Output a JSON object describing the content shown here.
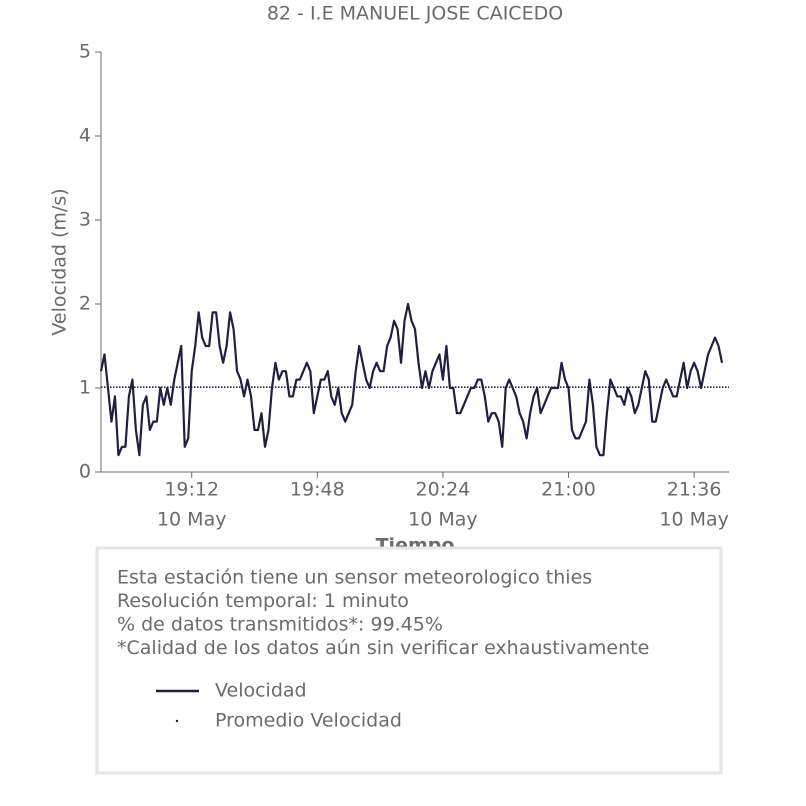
{
  "chart_data": {
    "type": "line",
    "title": "82 - I.E MANUEL JOSE CAICEDO",
    "xlabel": "Tiempo",
    "ylabel": "Velocidad (m/s)",
    "x": [
      "18:46",
      "18:47",
      "18:48",
      "18:49",
      "18:50",
      "18:51",
      "18:52",
      "18:53",
      "18:54",
      "18:55",
      "18:56",
      "18:57",
      "18:58",
      "18:59",
      "19:00",
      "19:01",
      "19:02",
      "19:03",
      "19:04",
      "19:05",
      "19:06",
      "19:07",
      "19:08",
      "19:09",
      "19:10",
      "19:11",
      "19:12",
      "19:13",
      "19:14",
      "19:15",
      "19:16",
      "19:17",
      "19:18",
      "19:19",
      "19:20",
      "19:21",
      "19:22",
      "19:23",
      "19:24",
      "19:25",
      "19:26",
      "19:27",
      "19:28",
      "19:29",
      "19:30",
      "19:31",
      "19:32",
      "19:33",
      "19:34",
      "19:35",
      "19:36",
      "19:37",
      "19:38",
      "19:39",
      "19:40",
      "19:41",
      "19:42",
      "19:43",
      "19:44",
      "19:45",
      "19:46",
      "19:47",
      "19:48",
      "19:49",
      "19:50",
      "19:51",
      "19:52",
      "19:53",
      "19:54",
      "19:55",
      "19:56",
      "19:57",
      "19:58",
      "19:59",
      "20:00",
      "20:01",
      "20:02",
      "20:03",
      "20:04",
      "20:05",
      "20:06",
      "20:07",
      "20:08",
      "20:09",
      "20:10",
      "20:11",
      "20:12",
      "20:13",
      "20:14",
      "20:15",
      "20:16",
      "20:17",
      "20:18",
      "20:19",
      "20:20",
      "20:21",
      "20:22",
      "20:23",
      "20:24",
      "20:25",
      "20:26",
      "20:27",
      "20:28",
      "20:29",
      "20:30",
      "20:31",
      "20:32",
      "20:33",
      "20:34",
      "20:35",
      "20:36",
      "20:37",
      "20:38",
      "20:39",
      "20:40",
      "20:41",
      "20:42",
      "20:43",
      "20:44",
      "20:45",
      "20:46",
      "20:47",
      "20:48",
      "20:49",
      "20:50",
      "20:51",
      "20:52",
      "20:53",
      "20:54",
      "20:55",
      "20:56",
      "20:57",
      "20:58",
      "20:59",
      "21:00",
      "21:01",
      "21:02",
      "21:03",
      "21:04",
      "21:05",
      "21:06",
      "21:07",
      "21:08",
      "21:09",
      "21:10",
      "21:11",
      "21:12",
      "21:13",
      "21:14",
      "21:15",
      "21:16",
      "21:17",
      "21:18",
      "21:19",
      "21:20",
      "21:21",
      "21:22",
      "21:23",
      "21:24",
      "21:25",
      "21:26",
      "21:27",
      "21:28",
      "21:29",
      "21:30",
      "21:31",
      "21:32",
      "21:33",
      "21:34",
      "21:35",
      "21:36",
      "21:37",
      "21:38",
      "21:39",
      "21:40",
      "21:41",
      "21:42",
      "21:43",
      "21:44"
    ],
    "series": [
      {
        "name": "Velocidad",
        "color": "#1f2041",
        "values": [
          1.2,
          1.4,
          1.0,
          0.6,
          0.9,
          0.2,
          0.3,
          0.3,
          0.9,
          1.1,
          0.5,
          0.2,
          0.8,
          0.9,
          0.5,
          0.6,
          0.6,
          1.0,
          0.8,
          1.0,
          0.8,
          1.1,
          1.3,
          1.5,
          0.3,
          0.4,
          1.2,
          1.5,
          1.9,
          1.6,
          1.5,
          1.5,
          1.9,
          1.9,
          1.5,
          1.3,
          1.5,
          1.9,
          1.7,
          1.2,
          1.1,
          0.9,
          1.1,
          0.9,
          0.5,
          0.5,
          0.7,
          0.3,
          0.5,
          1.0,
          1.3,
          1.1,
          1.2,
          1.2,
          0.9,
          0.9,
          1.1,
          1.1,
          1.2,
          1.3,
          1.2,
          0.7,
          0.9,
          1.1,
          1.1,
          1.2,
          0.9,
          0.8,
          1.0,
          0.7,
          0.6,
          0.7,
          0.8,
          1.2,
          1.5,
          1.3,
          1.1,
          1.0,
          1.2,
          1.3,
          1.2,
          1.2,
          1.5,
          1.6,
          1.8,
          1.7,
          1.3,
          1.8,
          2.0,
          1.8,
          1.7,
          1.3,
          1.0,
          1.2,
          1.0,
          1.2,
          1.3,
          1.4,
          1.1,
          1.5,
          1.0,
          1.0,
          0.7,
          0.7,
          0.8,
          0.9,
          1.0,
          1.0,
          1.1,
          1.1,
          0.9,
          0.6,
          0.7,
          0.7,
          0.6,
          0.3,
          1.0,
          1.1,
          1.0,
          0.9,
          0.7,
          0.6,
          0.4,
          0.7,
          0.9,
          1.0,
          0.7,
          0.8,
          0.9,
          1.0,
          1.0,
          1.0,
          1.3,
          1.1,
          1.0,
          0.5,
          0.4,
          0.4,
          0.5,
          0.6,
          1.1,
          0.8,
          0.3,
          0.2,
          0.2,
          0.7,
          1.1,
          1.0,
          0.9,
          0.9,
          0.8,
          1.0,
          0.9,
          0.7,
          0.8,
          1.0,
          1.2,
          1.1,
          0.6,
          0.6,
          0.8,
          1.0,
          1.1,
          1.0,
          0.9,
          0.9,
          1.1,
          1.3,
          1.0,
          1.2,
          1.3,
          1.2,
          1.0,
          1.2,
          1.4,
          1.5,
          1.6,
          1.5,
          1.3
        ]
      }
    ],
    "reference_lines": [
      {
        "name": "Promedio Velocidad",
        "value": 1.01,
        "color": "#1f2041"
      }
    ],
    "xlim": [
      "18:46",
      "21:46"
    ],
    "xticks": [
      {
        "value": "19:12",
        "label": "19:12",
        "date": "10 May"
      },
      {
        "value": "19:48",
        "label": "19:48"
      },
      {
        "value": "20:24",
        "label": "20:24",
        "date": "10 May"
      },
      {
        "value": "21:00",
        "label": "21:00"
      },
      {
        "value": "21:36",
        "label": "21:36",
        "date": "10 May"
      }
    ],
    "ylim": [
      0,
      5
    ],
    "yticks": [
      0,
      1,
      2,
      3,
      4,
      5
    ],
    "grid": false,
    "annotations": [
      "Esta estación tiene un sensor meteorologico thies",
      "Resolución temporal: 1 minuto",
      "% de datos transmitidos*: 99.45%",
      "*Calidad de los datos aún sin verificar exhaustivamente"
    ]
  }
}
